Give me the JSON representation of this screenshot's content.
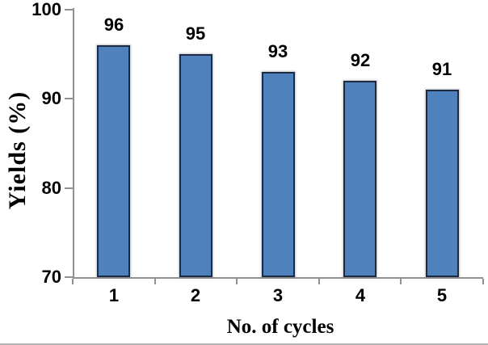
{
  "chart_data": {
    "type": "bar",
    "title": "",
    "xlabel": "No. of cycles",
    "ylabel": "Yields (%)",
    "categories": [
      "1",
      "2",
      "3",
      "4",
      "5"
    ],
    "values": [
      96,
      95,
      93,
      92,
      91
    ],
    "data_labels": [
      "96",
      "95",
      "93",
      "92",
      "91"
    ],
    "ylim": [
      70,
      100
    ],
    "yticks": [
      70,
      80,
      90,
      100
    ],
    "ytick_labels": [
      "70",
      "80",
      "90",
      "100"
    ],
    "grid": false,
    "legend": false,
    "colors": {
      "bar_fill": "#4F81BD",
      "bar_border": "#1C2B45",
      "axis": "#909090",
      "text": "#000000",
      "figure_edge": "#B3B3B3"
    }
  }
}
